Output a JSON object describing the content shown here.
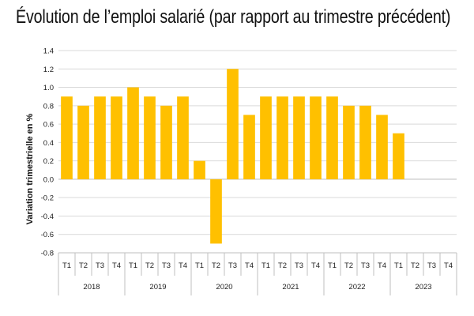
{
  "chart_data": {
    "type": "bar",
    "title": "Évolution de l’emploi salarié (par rapport au trimestre précédent)",
    "ylabel": "Variation trimestrielle en %",
    "xlabel": "",
    "ylim": [
      -0.8,
      1.4
    ],
    "yticks": [
      "1.4",
      "1.2",
      "1.0",
      "0.8",
      "0.6",
      "0.4",
      "0.2",
      "0.0",
      "-0.2",
      "-0.4",
      "-0.6",
      "-0.8"
    ],
    "ytick_values": [
      1.4,
      1.2,
      1.0,
      0.8,
      0.6,
      0.4,
      0.2,
      0.0,
      -0.2,
      -0.4,
      -0.6,
      -0.8
    ],
    "years": [
      "2018",
      "2019",
      "2020",
      "2021",
      "2022",
      "2023"
    ],
    "quarters": [
      "T1",
      "T2",
      "T3",
      "T4"
    ],
    "values": [
      0.9,
      0.8,
      0.9,
      0.9,
      1.0,
      0.9,
      0.8,
      0.9,
      0.2,
      -0.7,
      1.2,
      0.7,
      0.9,
      0.9,
      0.9,
      0.9,
      0.9,
      0.8,
      0.8,
      0.7,
      0.5,
      null,
      null,
      null
    ],
    "bar_color": "#FFC000",
    "grid": true,
    "legend": "none"
  }
}
